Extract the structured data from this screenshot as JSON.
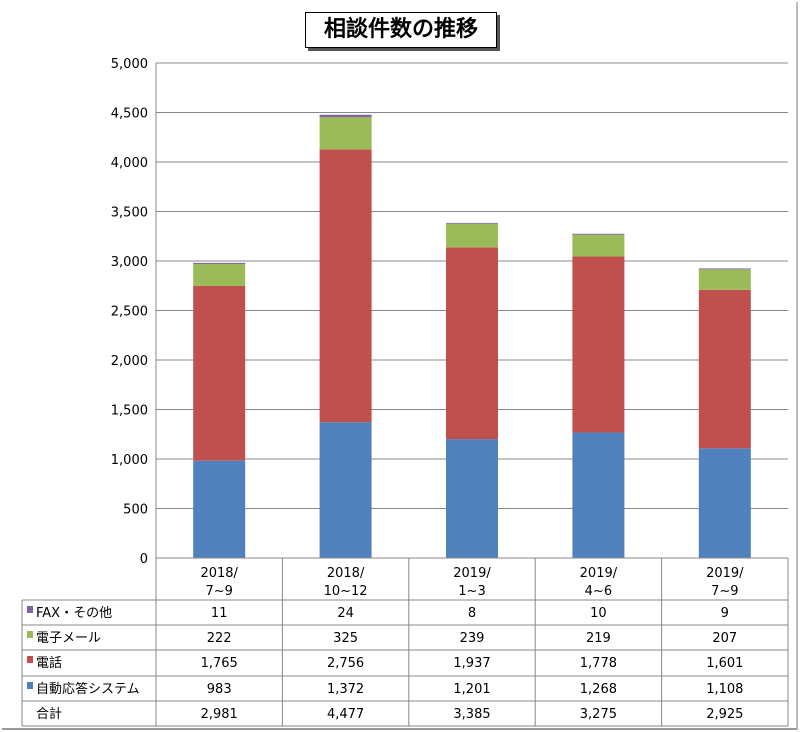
{
  "chart_data": {
    "type": "bar",
    "stacked": true,
    "title": "相談件数の推移",
    "xlabel": "",
    "ylabel": "",
    "ylim": [
      0,
      5000
    ],
    "yticks": [
      0,
      500,
      1000,
      1500,
      2000,
      2500,
      3000,
      3500,
      4000,
      4500,
      5000
    ],
    "ytick_labels": [
      "0",
      "500",
      "1,000",
      "1,500",
      "2,000",
      "2,500",
      "3,000",
      "3,500",
      "4,000",
      "4,500",
      "5,000"
    ],
    "grid": true,
    "categories": [
      [
        "2018/",
        "7~9"
      ],
      [
        "2018/",
        "10~12"
      ],
      [
        "2019/",
        "1~3"
      ],
      [
        "2019/",
        "4~6"
      ],
      [
        "2019/",
        "7~9"
      ]
    ],
    "series": [
      {
        "name": "自動応答システム",
        "color": "#4f81bd",
        "values": [
          983,
          1372,
          1201,
          1268,
          1108
        ],
        "labels": [
          "983",
          "1,372",
          "1,201",
          "1,268",
          "1,108"
        ]
      },
      {
        "name": "電話",
        "color": "#c0504d",
        "values": [
          1765,
          2756,
          1937,
          1778,
          1601
        ],
        "labels": [
          "1,765",
          "2,756",
          "1,937",
          "1,778",
          "1,601"
        ]
      },
      {
        "name": "電子メール",
        "color": "#9bbb59",
        "values": [
          222,
          325,
          239,
          219,
          207
        ],
        "labels": [
          "222",
          "325",
          "239",
          "219",
          "207"
        ]
      },
      {
        "name": "FAX・その他",
        "color": "#8064a2",
        "values": [
          11,
          24,
          8,
          10,
          9
        ],
        "labels": [
          "11",
          "24",
          "8",
          "10",
          "9"
        ]
      }
    ],
    "total": {
      "name": "合計",
      "values": [
        2981,
        4477,
        3385,
        3275,
        2925
      ],
      "labels": [
        "2,981",
        "4,477",
        "3,385",
        "3,275",
        "2,925"
      ]
    },
    "table_row_order": [
      3,
      2,
      1,
      0
    ]
  }
}
